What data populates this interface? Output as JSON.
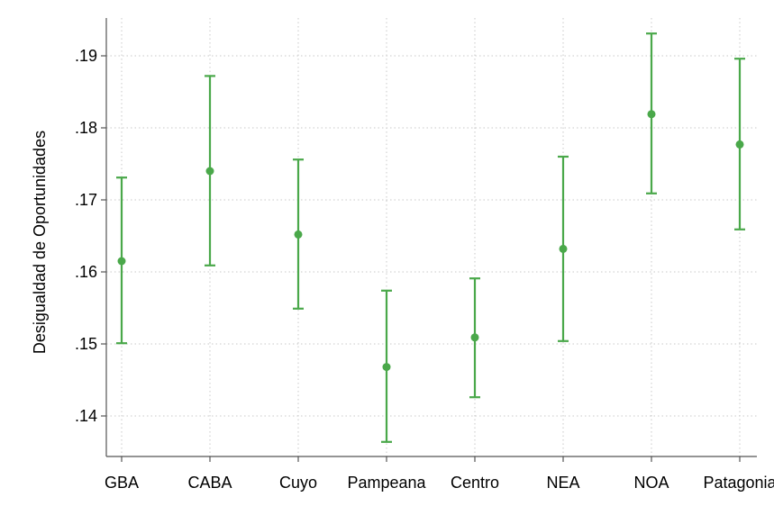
{
  "chart_data": {
    "type": "scatter",
    "title": "",
    "xlabel": "",
    "ylabel": "Desigualdad de Oportunidades",
    "categories": [
      "GBA",
      "CABA",
      "Cuyo",
      "Pampeana",
      "Centro",
      "NEA",
      "NOA",
      "Patagonia"
    ],
    "values": [
      0.1615,
      0.174,
      0.1652,
      0.1468,
      0.1509,
      0.1632,
      0.1819,
      0.1777
    ],
    "ci_low": [
      0.1501,
      0.1609,
      0.1549,
      0.1364,
      0.1426,
      0.1504,
      0.1709,
      0.1659
    ],
    "ci_high": [
      0.1731,
      0.1872,
      0.1756,
      0.1574,
      0.1591,
      0.176,
      0.1931,
      0.1896
    ],
    "ylim": [
      0.1345,
      0.1945
    ],
    "yticks": [
      0.14,
      0.15,
      0.16,
      0.17,
      0.18,
      0.19
    ],
    "ytick_labels": [
      ".14",
      ".15",
      ".16",
      ".17",
      ".18",
      ".19"
    ],
    "grid": true,
    "legend": "none",
    "marker_color": "#4aa84a",
    "grid_color": "#c8c8c8",
    "axis_color": "#555555"
  }
}
